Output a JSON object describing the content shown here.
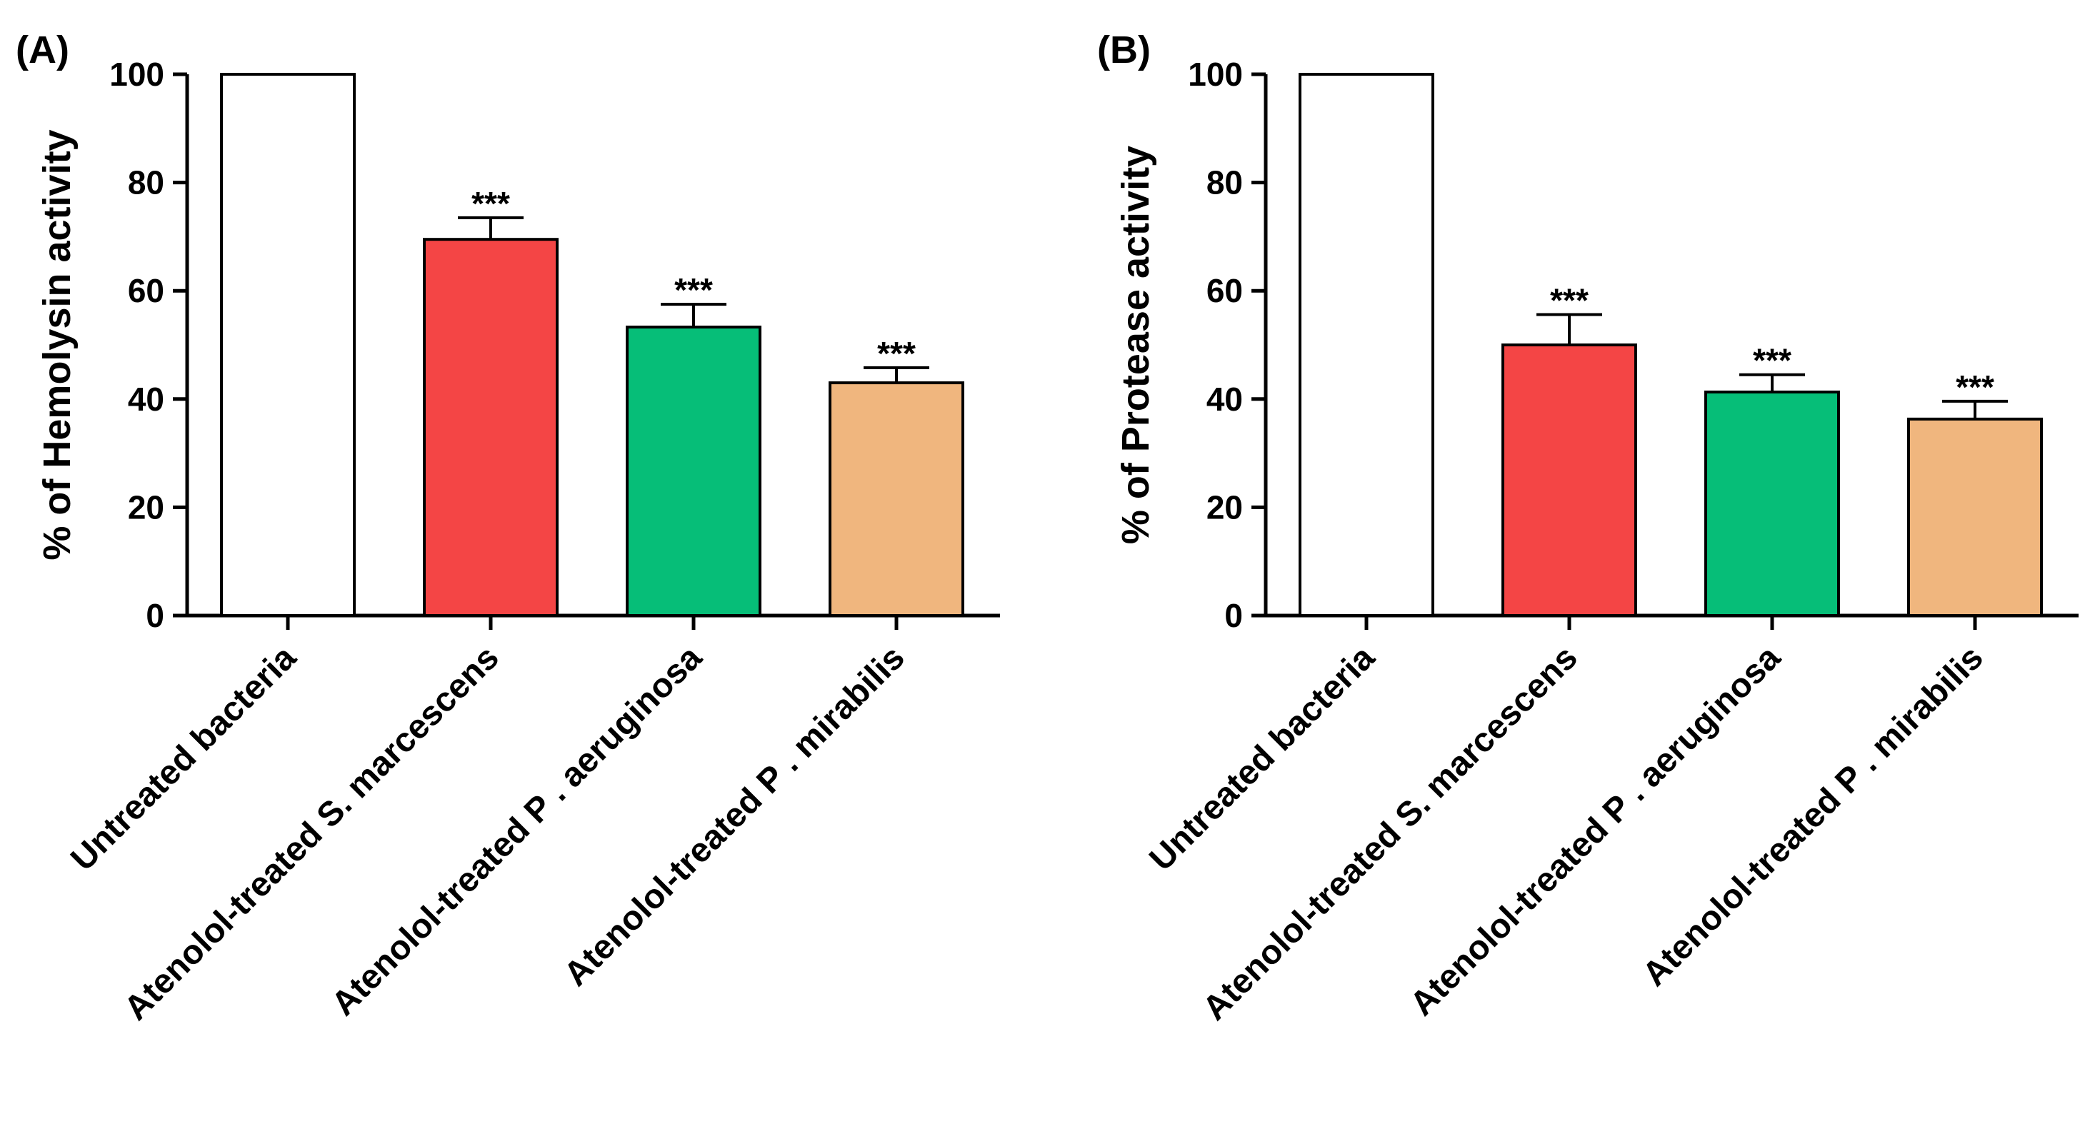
{
  "chart_data": [
    {
      "type": "bar",
      "panel_label": "(A)",
      "ylabel": "% of Hemolysin activity",
      "xlabel": "",
      "ylim": [
        0,
        100
      ],
      "yticks": [
        "0",
        "20",
        "40",
        "60",
        "80",
        "100"
      ],
      "categories": [
        "Untreated bacteria",
        "Atenolol-treated S. marcescens",
        "Atenolol-treated P . aeruginosa",
        "Atenolol-treated P .  mirabilis"
      ],
      "values": [
        100,
        69.5,
        53.3,
        43.0
      ],
      "errors": [
        0,
        4.0,
        4.2,
        2.8
      ],
      "significance": [
        "",
        "***",
        "***",
        "***"
      ],
      "colors": [
        "#ffffff",
        "#f44545",
        "#06be78",
        "#f0b67e"
      ],
      "grid": false,
      "legend": "none"
    },
    {
      "type": "bar",
      "panel_label": "(B)",
      "ylabel": "% of Protease activity",
      "xlabel": "",
      "ylim": [
        0,
        100
      ],
      "yticks": [
        "0",
        "20",
        "40",
        "60",
        "80",
        "100"
      ],
      "categories": [
        "Untreated bacteria",
        "Atenolol-treated S. marcescens",
        "Atenolol-treated P . aeruginosa",
        "Atenolol-treated P .  mirabilis"
      ],
      "values": [
        100,
        50.0,
        41.3,
        36.3
      ],
      "errors": [
        0,
        5.6,
        3.2,
        3.3
      ],
      "significance": [
        "",
        "***",
        "***",
        "***"
      ],
      "colors": [
        "#ffffff",
        "#f44545",
        "#06be78",
        "#f0b67e"
      ],
      "grid": false,
      "legend": "none"
    }
  ]
}
